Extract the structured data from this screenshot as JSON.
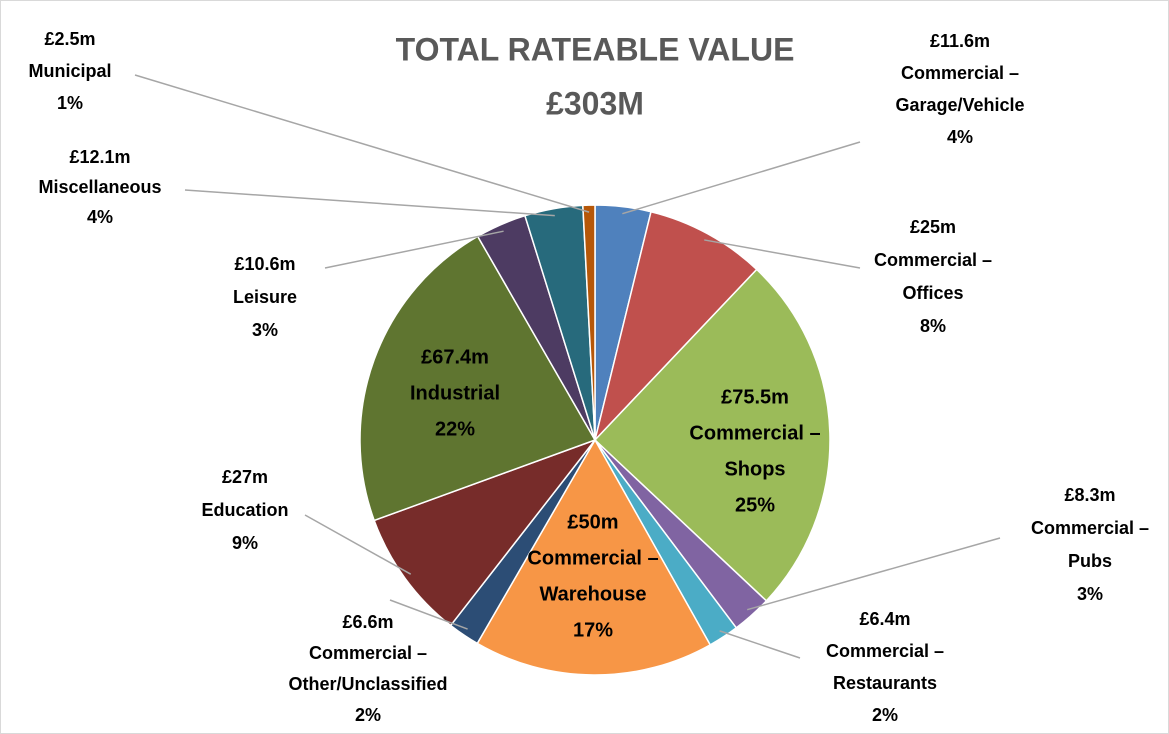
{
  "chart_data": {
    "type": "pie",
    "title": "TOTAL RATEABLE VALUE",
    "subtitle": "£303M",
    "categories": [
      [
        "Commercial –",
        "Garage/Vehicle"
      ],
      [
        "Commercial –",
        "Offices"
      ],
      [
        "Commercial –",
        "Shops"
      ],
      [
        "Commercial –",
        "Pubs"
      ],
      [
        "Commercial –",
        "Restaurants"
      ],
      [
        "Commercial –",
        "Warehouse"
      ],
      [
        "Commercial –",
        "Other/Unclassified"
      ],
      [
        "Education"
      ],
      [
        "Industrial"
      ],
      [
        "Leisure"
      ],
      [
        "Miscellaneous"
      ],
      [
        "Municipal"
      ]
    ],
    "values": [
      11.6,
      25,
      75.5,
      8.3,
      6.4,
      50,
      6.6,
      27,
      67.4,
      10.6,
      12.1,
      2.5
    ],
    "value_labels": [
      "£11.6m",
      "£25m",
      "£75.5m",
      "£8.3m",
      "£6.4m",
      "£50m",
      "£6.6m",
      "£27m",
      "£67.4m",
      "£10.6m",
      "£12.1m",
      "£2.5m"
    ],
    "percent_labels": [
      "4%",
      "8%",
      "25%",
      "3%",
      "2%",
      "17%",
      "2%",
      "9%",
      "22%",
      "3%",
      "4%",
      "1%"
    ],
    "colors": [
      "#4f81bd",
      "#c0504d",
      "#9bbb59",
      "#8064a2",
      "#4bacc6",
      "#f79646",
      "#2c4d75",
      "#772c2a",
      "#5f7530",
      "#4d3b62",
      "#276a7c",
      "#b65708"
    ]
  }
}
